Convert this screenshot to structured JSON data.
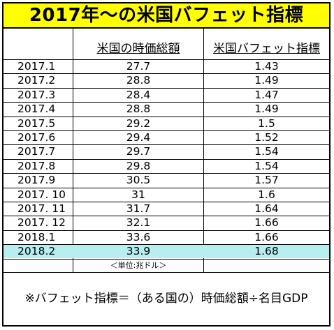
{
  "title": "2017年～の米国バフェット指標",
  "headers": {
    "market_cap": "米国の時価総額",
    "buffett": "米国バフェット指標"
  },
  "rows": [
    {
      "date": "2017.1",
      "market_cap": "27.7",
      "buffett": "1.43"
    },
    {
      "date": "2017.2",
      "market_cap": "28.8",
      "buffett": "1.49"
    },
    {
      "date": "2017.3",
      "market_cap": "28.4",
      "buffett": "1.47"
    },
    {
      "date": "2017.4",
      "market_cap": "28.8",
      "buffett": "1.49"
    },
    {
      "date": "2017.5",
      "market_cap": "29.2",
      "buffett": "1.5"
    },
    {
      "date": "2017.6",
      "market_cap": "29.4",
      "buffett": "1.52"
    },
    {
      "date": "2017.7",
      "market_cap": "29.7",
      "buffett": "1.54"
    },
    {
      "date": "2017.8",
      "market_cap": "29.8",
      "buffett": "1.54"
    },
    {
      "date": "2017.9",
      "market_cap": "30.5",
      "buffett": "1.57"
    },
    {
      "date": "2017. 10",
      "market_cap": "31",
      "buffett": "1.6"
    },
    {
      "date": "2017. 11",
      "market_cap": "31.7",
      "buffett": "1.64"
    },
    {
      "date": "2017. 12",
      "market_cap": "32.1",
      "buffett": "1.66"
    },
    {
      "date": "2018.1",
      "market_cap": "33.6",
      "buffett": "1.66"
    },
    {
      "date": "2018.2",
      "market_cap": "33.9",
      "buffett": "1.68"
    }
  ],
  "highlight_color": "#b7eef0",
  "title_color": "#ffff00",
  "unit": "＜単位:兆ドル＞",
  "note": "※バフェット指標＝（ある国の）時価総額÷名目GDP"
}
